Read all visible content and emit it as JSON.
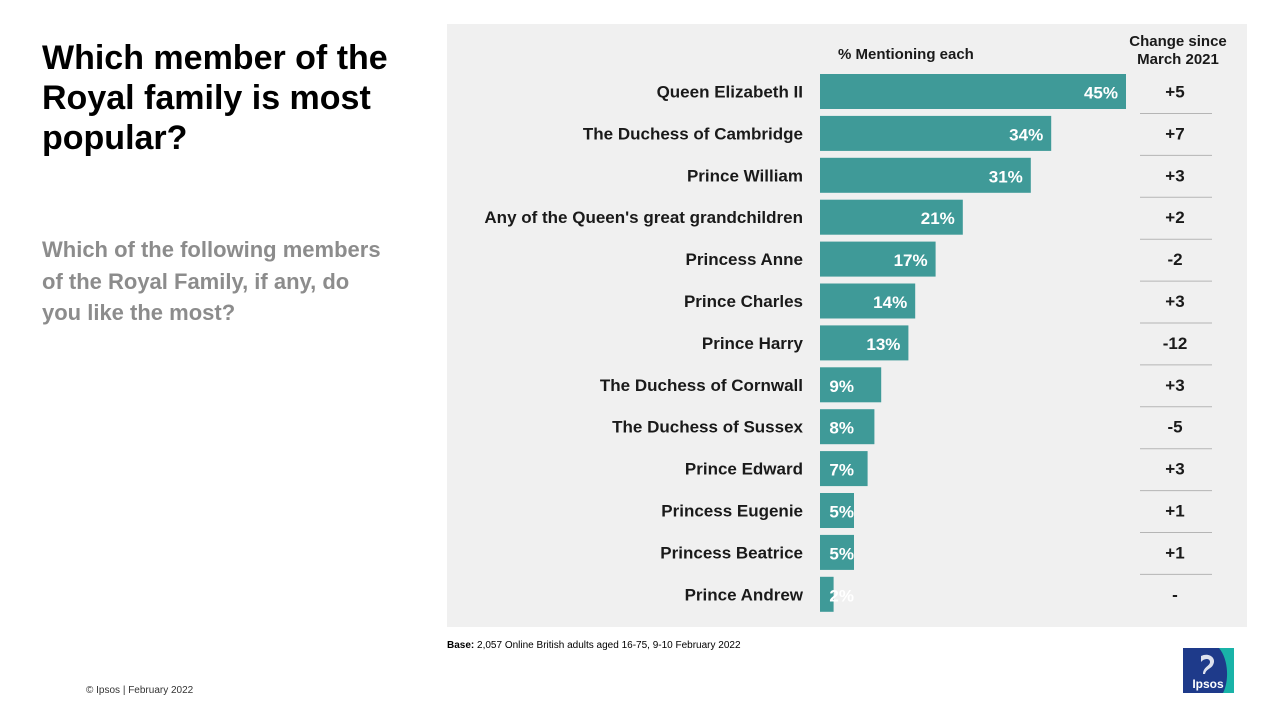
{
  "title": "Which member of the Royal family is most popular?",
  "question": "Which of the following members of the Royal Family, if any, do you like the most?",
  "column_headers": {
    "percent": "% Mentioning each",
    "change": "Change since March 2021"
  },
  "footnote": {
    "base_label": "Base:",
    "base_text": "2,057 Online British adults aged 16-75, 9-10 February 2022"
  },
  "copyright": "© Ipsos | February 2022",
  "logo_text": "Ipsos",
  "colors": {
    "bar": "#3f9a98",
    "logo": "#1e3a8a",
    "logo_accent": "#19b3a8",
    "panel": "#f0f0f0"
  },
  "chart_data": {
    "type": "bar",
    "orientation": "horizontal",
    "categories": [
      "Queen Elizabeth II",
      "The Duchess of Cambridge",
      "Prince William",
      "Any of the Queen's great grandchildren",
      "Princess Anne",
      "Prince Charles",
      "Prince Harry",
      "The Duchess of Cornwall",
      "The Duchess of Sussex",
      "Prince Edward",
      "Princess Eugenie",
      "Princess Beatrice",
      "Prince Andrew"
    ],
    "values": [
      45,
      34,
      31,
      21,
      17,
      14,
      13,
      9,
      8,
      7,
      5,
      5,
      2
    ],
    "value_labels": [
      "45%",
      "34%",
      "31%",
      "21%",
      "17%",
      "14%",
      "13%",
      "9%",
      "8%",
      "7%",
      "5%",
      "5%",
      "2%"
    ],
    "change": [
      "+5",
      "+7",
      "+3",
      "+2",
      "-2",
      "+3",
      "-12",
      "+3",
      "-5",
      "+3",
      "+1",
      "+1",
      "-"
    ],
    "xlim": [
      0,
      45
    ],
    "title": "",
    "xlabel": "",
    "ylabel": ""
  }
}
